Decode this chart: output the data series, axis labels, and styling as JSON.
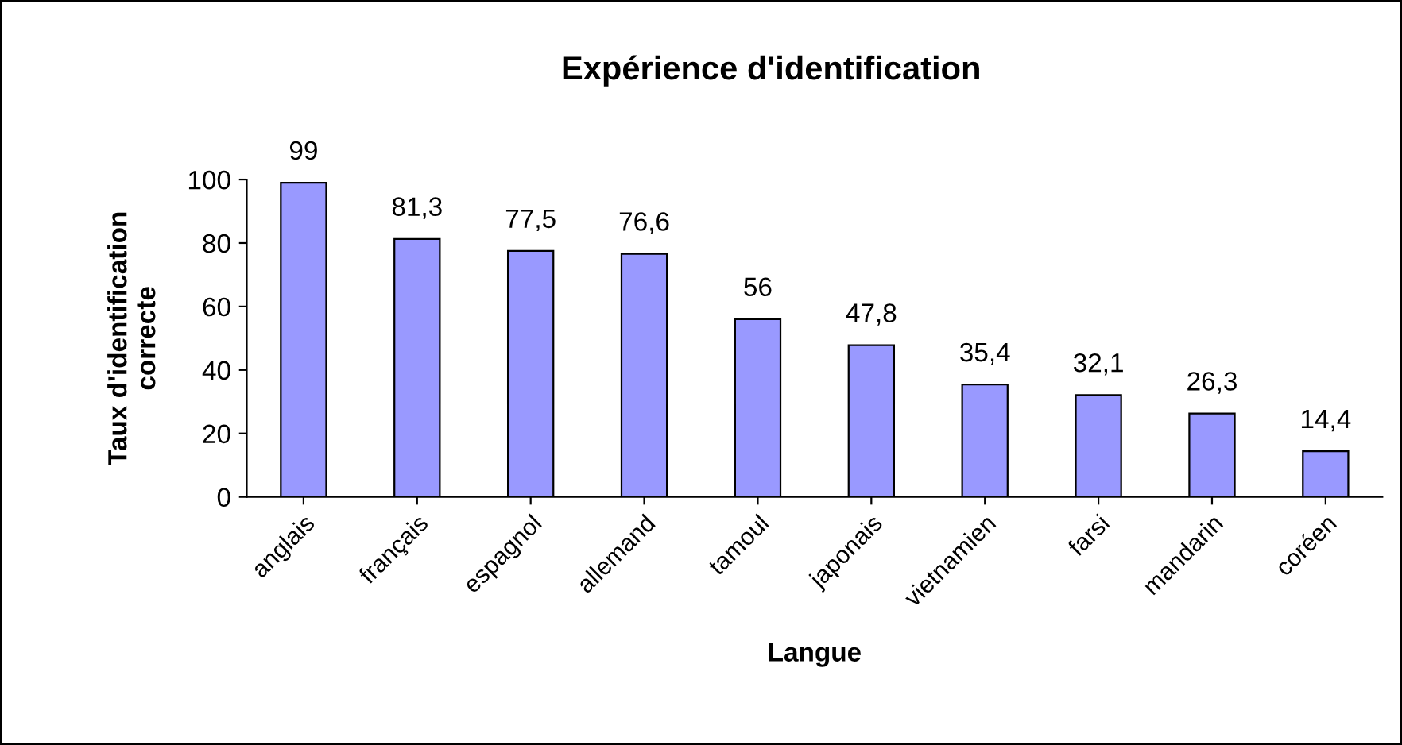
{
  "chart_data": {
    "type": "bar",
    "title": "Expérience d'identification",
    "xlabel": "Langue",
    "ylabel": "Taux d'identification\ncorrecte",
    "categories": [
      "anglais",
      "français",
      "espagnol",
      "allemand",
      "tamoul",
      "japonais",
      "vietnamien",
      "farsi",
      "mandarin",
      "coréen"
    ],
    "values": [
      99,
      81.3,
      77.5,
      76.6,
      56,
      47.8,
      35.4,
      32.1,
      26.3,
      14.4
    ],
    "value_labels": [
      "99",
      "81,3",
      "77,5",
      "76,6",
      "56",
      "47,8",
      "35,4",
      "32,1",
      "26,3",
      "14,4"
    ],
    "color": "#9999ff",
    "ylim": [
      0,
      100
    ],
    "yticks": [
      0,
      20,
      40,
      60,
      80,
      100
    ],
    "grid": false,
    "legend": false
  }
}
